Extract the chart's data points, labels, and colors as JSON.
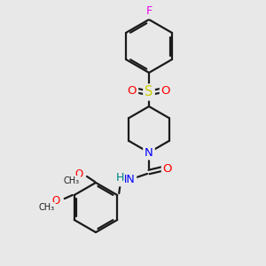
{
  "background_color": "#e8e8e8",
  "bond_color": "#1a1a1a",
  "atom_colors": {
    "F": "#ee00ee",
    "O": "#ff0000",
    "N": "#0000ff",
    "S": "#cccc00",
    "H": "#008080",
    "C": "#1a1a1a"
  },
  "line_width": 1.6,
  "figsize": [
    3.0,
    3.0
  ],
  "dpi": 100,
  "xlim": [
    0,
    300
  ],
  "ylim": [
    0,
    300
  ]
}
